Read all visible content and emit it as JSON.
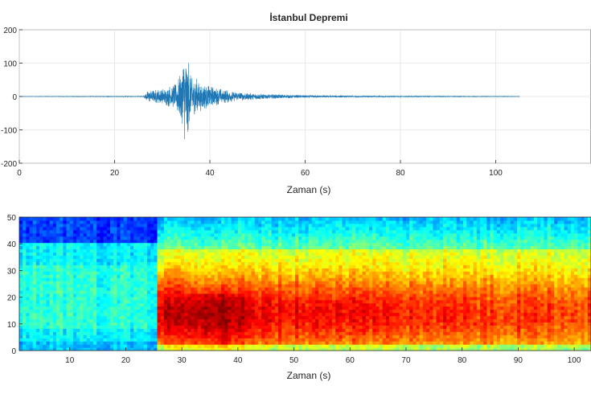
{
  "chart_data": [
    {
      "type": "line",
      "title": "İstanbul Depremi",
      "xlabel": "Zaman (s)",
      "ylabel": "",
      "xlim": [
        0,
        120
      ],
      "ylim": [
        -200,
        200
      ],
      "x_ticks": [
        0,
        20,
        40,
        60,
        80,
        100
      ],
      "y_ticks": [
        200,
        100,
        0,
        -100,
        -200
      ],
      "y_tick_labels": [
        "200",
        "100",
        "0",
        "-100",
        "-200"
      ],
      "grid": true,
      "line_color": "#1f77b4",
      "signal_duration_s": [
        0,
        105
      ],
      "envelope": {
        "t": [
          0,
          26,
          27,
          30,
          33,
          34,
          35,
          36,
          37,
          38,
          40,
          42,
          45,
          50,
          55,
          60,
          70,
          80,
          90,
          105
        ],
        "amp": [
          0.5,
          1,
          18,
          25,
          40,
          90,
          155,
          70,
          60,
          45,
          32,
          25,
          15,
          9,
          6,
          4,
          2.5,
          1.5,
          1,
          0.6
        ]
      }
    },
    {
      "type": "heatmap",
      "title": "",
      "xlabel": "Zaman (s)",
      "ylabel": "",
      "xlim": [
        1,
        103
      ],
      "ylim": [
        0,
        50
      ],
      "x_ticks": [
        10,
        20,
        30,
        40,
        50,
        60,
        70,
        80,
        90,
        100
      ],
      "y_ticks": [
        0,
        10,
        20,
        30,
        40,
        50
      ],
      "colormap": "jet",
      "description": "low energy (blue) before ~25 s; strong energy (red) from ~26 s onward concentrated at 5–25 Hz with peak near 35 s"
    }
  ]
}
